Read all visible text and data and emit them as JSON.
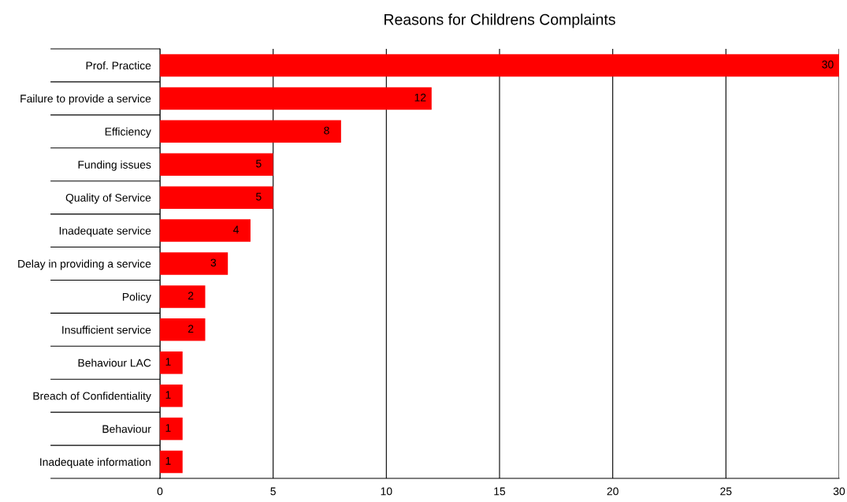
{
  "chart_data": {
    "type": "bar",
    "orientation": "horizontal",
    "title": "Reasons for Childrens Complaints",
    "categories": [
      "Prof. Practice",
      "Failure to provide a service",
      "Efficiency",
      "Funding issues",
      "Quality of Service",
      "Inadequate service",
      "Delay in providing a service",
      "Policy",
      "Insufficient service",
      "Behaviour LAC",
      "Breach of Confidentiality",
      "Behaviour",
      "Inadequate information"
    ],
    "values": [
      30,
      12,
      8,
      5,
      5,
      4,
      3,
      2,
      2,
      1,
      1,
      1,
      1
    ],
    "color": "#ff0000",
    "xlim": [
      0,
      30
    ],
    "xticks": [
      0,
      5,
      10,
      15,
      20,
      25,
      30
    ],
    "grid": "x",
    "data_labels": true
  }
}
